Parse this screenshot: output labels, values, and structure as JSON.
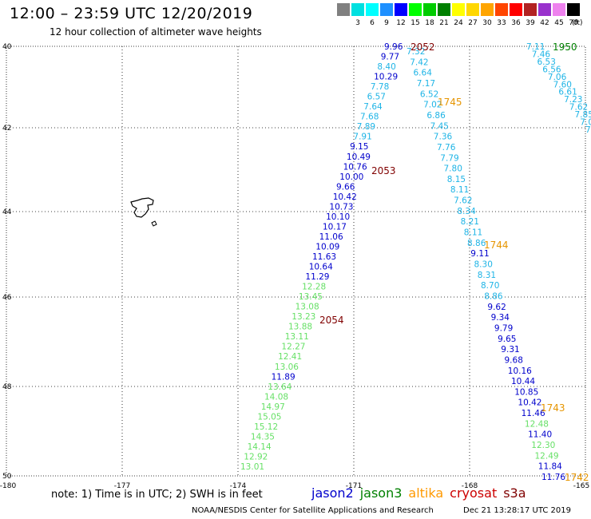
{
  "header": {
    "title": "12:00 – 23:59 UTC 12/20/2019",
    "subtitle": "12 hour collection of altimeter wave heights"
  },
  "color_scale": {
    "unit": "(ft)",
    "bins": [
      {
        "label": "",
        "color": "#808080"
      },
      {
        "label": "3",
        "color": "#00e0e0"
      },
      {
        "label": "6",
        "color": "#00ffff"
      },
      {
        "label": "9",
        "color": "#1e90ff"
      },
      {
        "label": "12",
        "color": "#0000ff"
      },
      {
        "label": "15",
        "color": "#00ff00"
      },
      {
        "label": "18",
        "color": "#00cc00"
      },
      {
        "label": "21",
        "color": "#008000"
      },
      {
        "label": "24",
        "color": "#ffff00"
      },
      {
        "label": "27",
        "color": "#ffd700"
      },
      {
        "label": "30",
        "color": "#ffa500"
      },
      {
        "label": "33",
        "color": "#ff4500"
      },
      {
        "label": "36",
        "color": "#ff0000"
      },
      {
        "label": "39",
        "color": "#b22222"
      },
      {
        "label": "42",
        "color": "#9932cc"
      },
      {
        "label": "45",
        "color": "#ee82ee"
      },
      {
        "label": "70",
        "color": "#000000"
      }
    ]
  },
  "axes": {
    "lon_ticks": [
      "-180",
      "-177",
      "-174",
      "-171",
      "-168",
      "-165"
    ],
    "lat_ticks": [
      "40",
      "42",
      "44",
      "46",
      "48",
      "50"
    ]
  },
  "colors": {
    "cyan": "#1eb4e6",
    "blue": "#0000cc",
    "lightgreen": "#66e066",
    "label_maroon": "#800000",
    "label_orange": "#e69500",
    "label_green": "#008000"
  },
  "tracks": {
    "track_2052_2054": [
      {
        "v": "9.96",
        "c": "blue"
      },
      {
        "v": "9.77",
        "c": "blue"
      },
      {
        "v": "8.40",
        "c": "cyan"
      },
      {
        "v": "10.29",
        "c": "blue"
      },
      {
        "v": "7.78",
        "c": "cyan"
      },
      {
        "v": "6.57",
        "c": "cyan"
      },
      {
        "v": "7.64",
        "c": "cyan"
      },
      {
        "v": "7.68",
        "c": "cyan"
      },
      {
        "v": "7.89",
        "c": "cyan"
      },
      {
        "v": "7.91",
        "c": "cyan"
      },
      {
        "v": "9.15",
        "c": "blue"
      },
      {
        "v": "10.49",
        "c": "blue"
      },
      {
        "v": "10.76",
        "c": "blue"
      },
      {
        "v": "10.00",
        "c": "blue"
      },
      {
        "v": "9.66",
        "c": "blue"
      },
      {
        "v": "10.42",
        "c": "blue"
      },
      {
        "v": "10.73",
        "c": "blue"
      },
      {
        "v": "10.10",
        "c": "blue"
      },
      {
        "v": "10.17",
        "c": "blue"
      },
      {
        "v": "11.06",
        "c": "blue"
      },
      {
        "v": "10.09",
        "c": "blue"
      },
      {
        "v": "11.63",
        "c": "blue"
      },
      {
        "v": "10.64",
        "c": "blue"
      },
      {
        "v": "11.29",
        "c": "blue"
      },
      {
        "v": "12.28",
        "c": "lightgreen"
      },
      {
        "v": "13.45",
        "c": "lightgreen"
      },
      {
        "v": "13.08",
        "c": "lightgreen"
      },
      {
        "v": "13.23",
        "c": "lightgreen"
      },
      {
        "v": "13.88",
        "c": "lightgreen"
      },
      {
        "v": "13.11",
        "c": "lightgreen"
      },
      {
        "v": "12.27",
        "c": "lightgreen"
      },
      {
        "v": "12.41",
        "c": "lightgreen"
      },
      {
        "v": "13.06",
        "c": "lightgreen"
      },
      {
        "v": "11.89",
        "c": "blue"
      },
      {
        "v": "13.64",
        "c": "lightgreen"
      },
      {
        "v": "14.08",
        "c": "lightgreen"
      },
      {
        "v": "14.97",
        "c": "lightgreen"
      },
      {
        "v": "15.05",
        "c": "lightgreen"
      },
      {
        "v": "15.12",
        "c": "lightgreen"
      },
      {
        "v": "14.35",
        "c": "lightgreen"
      },
      {
        "v": "14.14",
        "c": "lightgreen"
      },
      {
        "v": "12.92",
        "c": "lightgreen"
      },
      {
        "v": "13.01",
        "c": "lightgreen"
      }
    ],
    "track_1745_1742": [
      {
        "v": "7.32",
        "c": "cyan"
      },
      {
        "v": "7.42",
        "c": "cyan"
      },
      {
        "v": "6.64",
        "c": "cyan"
      },
      {
        "v": "7.17",
        "c": "cyan"
      },
      {
        "v": "6.52",
        "c": "cyan"
      },
      {
        "v": "7.02",
        "c": "cyan"
      },
      {
        "v": "6.86",
        "c": "cyan"
      },
      {
        "v": "7.45",
        "c": "cyan"
      },
      {
        "v": "7.36",
        "c": "cyan"
      },
      {
        "v": "7.76",
        "c": "cyan"
      },
      {
        "v": "7.79",
        "c": "cyan"
      },
      {
        "v": "7.80",
        "c": "cyan"
      },
      {
        "v": "8.15",
        "c": "cyan"
      },
      {
        "v": "8.11",
        "c": "cyan"
      },
      {
        "v": "7.62",
        "c": "cyan"
      },
      {
        "v": "8.34",
        "c": "cyan"
      },
      {
        "v": "8.21",
        "c": "cyan"
      },
      {
        "v": "8.11",
        "c": "cyan"
      },
      {
        "v": "8.86",
        "c": "cyan"
      },
      {
        "v": "9.11",
        "c": "blue"
      },
      {
        "v": "8.30",
        "c": "cyan"
      },
      {
        "v": "8.31",
        "c": "cyan"
      },
      {
        "v": "8.70",
        "c": "cyan"
      },
      {
        "v": "8.86",
        "c": "cyan"
      },
      {
        "v": "9.62",
        "c": "blue"
      },
      {
        "v": "9.34",
        "c": "blue"
      },
      {
        "v": "9.79",
        "c": "blue"
      },
      {
        "v": "9.65",
        "c": "blue"
      },
      {
        "v": "9.31",
        "c": "blue"
      },
      {
        "v": "9.68",
        "c": "blue"
      },
      {
        "v": "10.16",
        "c": "blue"
      },
      {
        "v": "10.44",
        "c": "blue"
      },
      {
        "v": "10.85",
        "c": "blue"
      },
      {
        "v": "10.42",
        "c": "blue"
      },
      {
        "v": "11.46",
        "c": "blue"
      },
      {
        "v": "12.48",
        "c": "lightgreen"
      },
      {
        "v": "11.40",
        "c": "blue"
      },
      {
        "v": "12.30",
        "c": "lightgreen"
      },
      {
        "v": "12.49",
        "c": "lightgreen"
      },
      {
        "v": "11.84",
        "c": "blue"
      },
      {
        "v": "11.76",
        "c": "blue"
      }
    ],
    "track_1950": [
      {
        "v": "7.11",
        "c": "cyan"
      },
      {
        "v": "7.46",
        "c": "cyan"
      },
      {
        "v": "6.53",
        "c": "cyan"
      },
      {
        "v": "6.56",
        "c": "cyan"
      },
      {
        "v": "7.06",
        "c": "cyan"
      },
      {
        "v": "7.60",
        "c": "cyan"
      },
      {
        "v": "6.61",
        "c": "cyan"
      },
      {
        "v": "7.23",
        "c": "cyan"
      },
      {
        "v": "7.62",
        "c": "cyan"
      },
      {
        "v": "7.85",
        "c": "cyan"
      },
      {
        "v": "7.0",
        "c": "cyan"
      },
      {
        "v": "7.",
        "c": "cyan"
      }
    ]
  },
  "pass_labels": [
    {
      "text": "2052",
      "c": "label_maroon"
    },
    {
      "text": "2053",
      "c": "label_maroon"
    },
    {
      "text": "2054",
      "c": "label_maroon"
    },
    {
      "text": "1745",
      "c": "label_orange"
    },
    {
      "text": "1744",
      "c": "label_orange"
    },
    {
      "text": "1743",
      "c": "label_orange"
    },
    {
      "text": "1742",
      "c": "label_orange"
    },
    {
      "text": "1950",
      "c": "label_green"
    }
  ],
  "footer": {
    "note": "note: 1) Time is in UTC; 2) SWH is in feet",
    "satellites": [
      {
        "name": "jason2",
        "color": "#0000cc"
      },
      {
        "name": "jason3",
        "color": "#008000"
      },
      {
        "name": "altika",
        "color": "#ff9900"
      },
      {
        "name": "cryosat",
        "color": "#cc0000"
      },
      {
        "name": "s3a",
        "color": "#800000"
      }
    ],
    "credit": "NOAA/NESDIS Center for Satellite Applications and Research",
    "timestamp": "Dec 21 13:28:17 UTC 2019"
  }
}
